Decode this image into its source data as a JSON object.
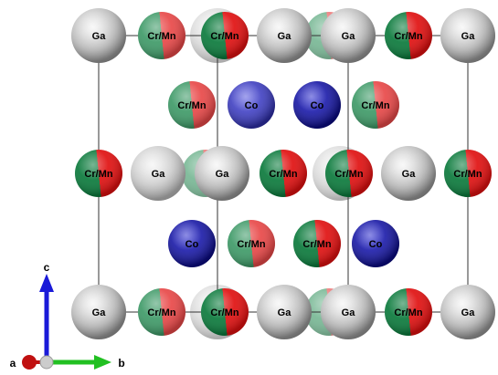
{
  "atoms": [
    {
      "label": "Ga"
    },
    {
      "label": "Cr/Mn"
    },
    {
      "label": "Cr/Mn"
    },
    {
      "label": "Ga"
    },
    {
      "label": "Ga"
    },
    {
      "label": "Cr/Mn"
    },
    {
      "label": "Ga"
    },
    {
      "label": "Cr/Mn"
    },
    {
      "label": "Co"
    },
    {
      "label": "Co"
    },
    {
      "label": "Cr/Mn"
    },
    {
      "label": "Cr/Mn"
    },
    {
      "label": "Ga"
    },
    {
      "label": "Ga"
    },
    {
      "label": "Cr/Mn"
    },
    {
      "label": "Cr/Mn"
    },
    {
      "label": "Ga"
    },
    {
      "label": "Cr/Mn"
    },
    {
      "label": "Co"
    },
    {
      "label": "Cr/Mn"
    },
    {
      "label": "Cr/Mn"
    },
    {
      "label": "Co"
    },
    {
      "label": "Ga"
    },
    {
      "label": "Cr/Mn"
    },
    {
      "label": "Cr/Mn"
    },
    {
      "label": "Ga"
    },
    {
      "label": "Ga"
    },
    {
      "label": "Cr/Mn"
    },
    {
      "label": "Ga"
    }
  ],
  "axes": {
    "a": "a",
    "b": "b",
    "c": "c"
  }
}
